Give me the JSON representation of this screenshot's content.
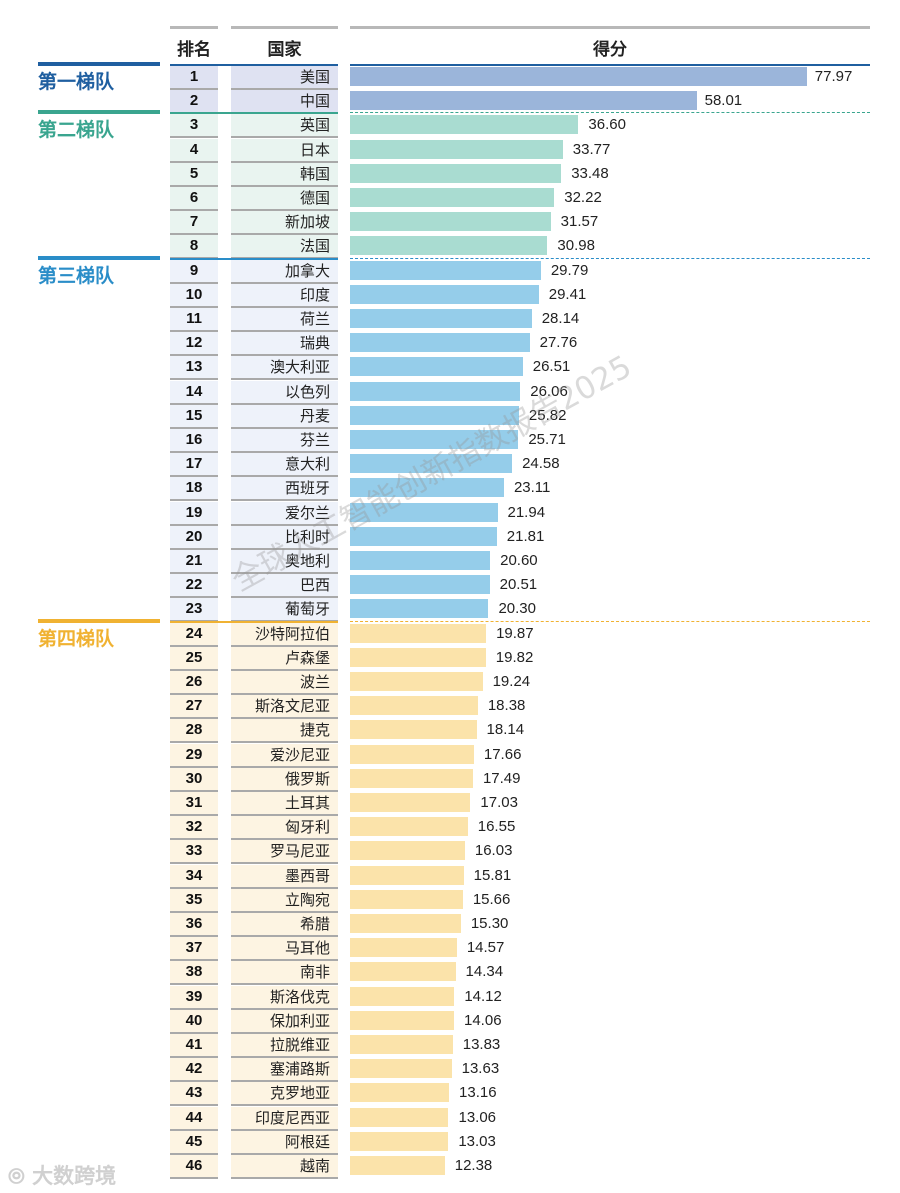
{
  "chart_data": {
    "type": "bar",
    "orientation": "horizontal",
    "headers": {
      "rank": "排名",
      "country": "国家",
      "score": "得分"
    },
    "tiers": [
      {
        "name": "第一梯队",
        "start_rank": 1,
        "end_rank": 2,
        "color": "#1f5fa0",
        "bar_color": "#9bb5da",
        "cell_color": "#dfe2f2"
      },
      {
        "name": "第二梯队",
        "start_rank": 3,
        "end_rank": 8,
        "color": "#3aa58f",
        "bar_color": "#a9dcd1",
        "cell_color": "#e9f4f0"
      },
      {
        "name": "第三梯队",
        "start_rank": 9,
        "end_rank": 23,
        "color": "#2a8dc8",
        "bar_color": "#95cdea",
        "cell_color": "#eef2fa"
      },
      {
        "name": "第四梯队",
        "start_rank": 24,
        "end_rank": 46,
        "color": "#f0b232",
        "bar_color": "#fbe3aa",
        "cell_color": "#fdf4e2"
      }
    ],
    "ranks": [
      1,
      2,
      3,
      4,
      5,
      6,
      7,
      8,
      9,
      10,
      11,
      12,
      13,
      14,
      15,
      16,
      17,
      18,
      19,
      20,
      21,
      22,
      23,
      24,
      25,
      26,
      27,
      28,
      29,
      30,
      31,
      32,
      33,
      34,
      35,
      36,
      37,
      38,
      39,
      40,
      41,
      42,
      43,
      44,
      45,
      46
    ],
    "categories": [
      "美国",
      "中国",
      "英国",
      "日本",
      "韩国",
      "德国",
      "新加坡",
      "法国",
      "加拿大",
      "印度",
      "荷兰",
      "瑞典",
      "澳大利亚",
      "以色列",
      "丹麦",
      "芬兰",
      "意大利",
      "西班牙",
      "爱尔兰",
      "比利时",
      "奥地利",
      "巴西",
      "葡萄牙",
      "沙特阿拉伯",
      "卢森堡",
      "波兰",
      "斯洛文尼亚",
      "捷克",
      "爱沙尼亚",
      "俄罗斯",
      "土耳其",
      "匈牙利",
      "罗马尼亚",
      "墨西哥",
      "立陶宛",
      "希腊",
      "马耳他",
      "南非",
      "斯洛伐克",
      "保加利亚",
      "拉脱维亚",
      "塞浦路斯",
      "克罗地亚",
      "印度尼西亚",
      "阿根廷",
      "越南"
    ],
    "values": [
      "77.97",
      "58.01",
      "36.60",
      "33.77",
      "33.48",
      "32.22",
      "31.57",
      "30.98",
      "29.79",
      "29.41",
      "28.14",
      "27.76",
      "26.51",
      "26.06",
      "25.82",
      "25.71",
      "24.58",
      "23.11",
      "21.94",
      "21.81",
      "20.60",
      "20.51",
      "20.30",
      "19.87",
      "19.82",
      "19.24",
      "18.38",
      "18.14",
      "17.66",
      "17.49",
      "17.03",
      "16.55",
      "16.03",
      "15.81",
      "15.66",
      "15.30",
      "14.57",
      "14.34",
      "14.12",
      "14.06",
      "13.83",
      "13.63",
      "13.16",
      "13.06",
      "13.03",
      "12.38"
    ]
  },
  "watermark": "全球人工智能创新指数报告2025",
  "logo": "大数跨境"
}
